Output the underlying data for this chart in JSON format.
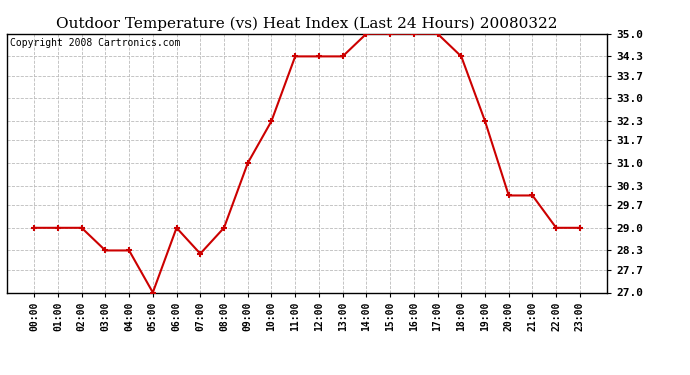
{
  "title": "Outdoor Temperature (vs) Heat Index (Last 24 Hours) 20080322",
  "copyright": "Copyright 2008 Cartronics.com",
  "x_labels": [
    "00:00",
    "01:00",
    "02:00",
    "03:00",
    "04:00",
    "05:00",
    "06:00",
    "07:00",
    "08:00",
    "09:00",
    "10:00",
    "11:00",
    "12:00",
    "13:00",
    "14:00",
    "15:00",
    "16:00",
    "17:00",
    "18:00",
    "19:00",
    "20:00",
    "21:00",
    "22:00",
    "23:00"
  ],
  "y_values": [
    29.0,
    29.0,
    29.0,
    28.3,
    28.3,
    27.0,
    29.0,
    28.2,
    29.0,
    31.0,
    32.3,
    34.3,
    34.3,
    34.3,
    35.0,
    35.0,
    35.0,
    35.0,
    34.3,
    32.3,
    30.0,
    30.0,
    29.0,
    29.0
  ],
  "y_ticks": [
    27.0,
    27.7,
    28.3,
    29.0,
    29.7,
    30.3,
    31.0,
    31.7,
    32.3,
    33.0,
    33.7,
    34.3,
    35.0
  ],
  "ylim": [
    27.0,
    35.0
  ],
  "line_color": "#cc0000",
  "marker": "+",
  "marker_color": "#000000",
  "bg_color": "#ffffff",
  "plot_bg_color": "#ffffff",
  "grid_color": "#bbbbbb",
  "title_fontsize": 11,
  "copyright_fontsize": 7,
  "tick_fontsize": 8,
  "xtick_fontsize": 7
}
